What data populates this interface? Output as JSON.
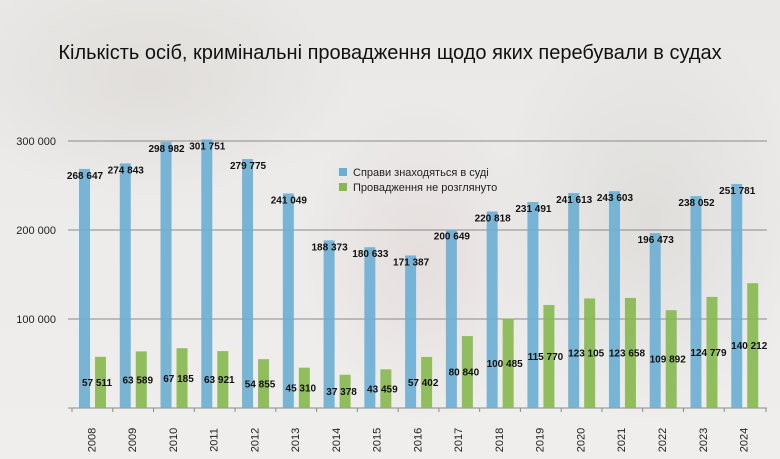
{
  "chart_data": {
    "type": "bar",
    "title": "Кількість осіб, кримінальні провадження щодо яких перебували в судах",
    "xlabel": "",
    "ylabel": "",
    "ylim": [
      0,
      300000
    ],
    "yticks": [
      100000,
      200000,
      300000
    ],
    "ytick_labels": [
      "100 000",
      "200 000",
      "300 000"
    ],
    "grid": true,
    "legend_position": "top-center",
    "categories": [
      "2008",
      "2009",
      "2010",
      "2011",
      "2012",
      "2013",
      "2014",
      "2015",
      "2016",
      "2017",
      "2018",
      "2019",
      "2020",
      "2021",
      "2022",
      "2023",
      "2024"
    ],
    "series": [
      {
        "name": "Справи знаходяться в суді",
        "color": "#6aaed3",
        "values": [
          268647,
          274843,
          298982,
          301751,
          279775,
          241049,
          188373,
          180633,
          171387,
          200649,
          220818,
          231491,
          241613,
          243603,
          196473,
          238052,
          251781
        ],
        "labels": [
          "268 647",
          "274 843",
          "298 982",
          "301 751",
          "279 775",
          "241 049",
          "188 373",
          "180 633",
          "171 387",
          "200 649",
          "220 818",
          "231 491",
          "241 613",
          "243 603",
          "196 473",
          "238 052",
          "251 781"
        ]
      },
      {
        "name": "Провадження не розглянуто",
        "color": "#86b84e",
        "values": [
          57511,
          63589,
          67185,
          63921,
          54855,
          45310,
          37378,
          43459,
          57402,
          80840,
          100485,
          115770,
          123105,
          123658,
          109892,
          124779,
          140212
        ],
        "labels": [
          "57 511",
          "63 589",
          "67 185",
          "63 921",
          "54 855",
          "45 310",
          "37 378",
          "43 459",
          "57 402",
          "80 840",
          "100 485",
          "115 770",
          "123 105",
          "123 658",
          "109 892",
          "124 779",
          "140 212"
        ]
      }
    ]
  }
}
